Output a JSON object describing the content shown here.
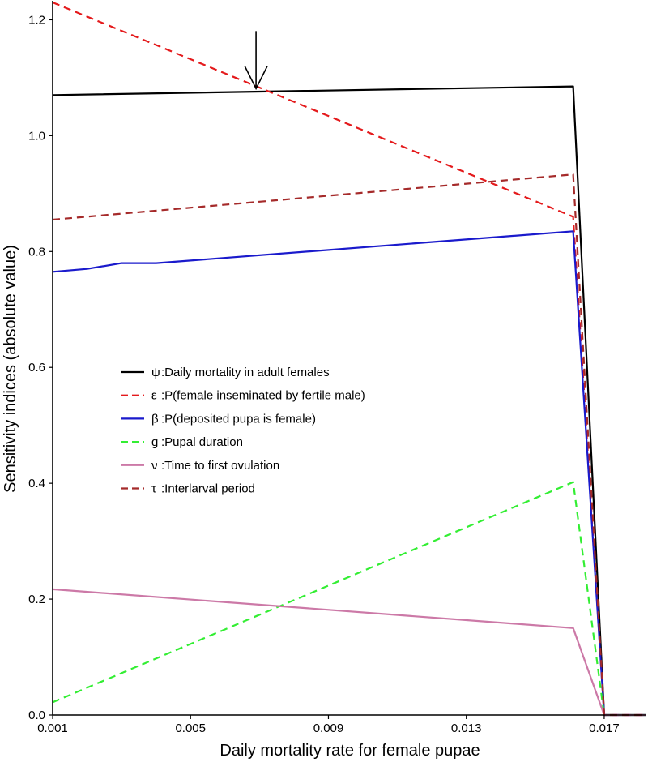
{
  "chart_data": {
    "type": "line",
    "xlabel": "Daily mortality rate for female pupae",
    "ylabel": "Sensitivity indices (absolute value)",
    "xlim": [
      0.001,
      0.0182
    ],
    "ylim": [
      0,
      1.23
    ],
    "xticks": [
      "0.001",
      "0.005",
      "0.009",
      "0.013",
      "0.017"
    ],
    "xtick_values": [
      0.001,
      0.005,
      0.009,
      0.013,
      0.017
    ],
    "yticks": [
      "0.0",
      "0.2",
      "0.4",
      "0.6",
      "0.8",
      "1.0",
      "1.2"
    ],
    "ytick_values": [
      0,
      0.2,
      0.4,
      0.6,
      0.8,
      1.0,
      1.2
    ],
    "grid": false,
    "legend_position": "center-left",
    "annotation": {
      "type": "arrow",
      "x": 0.0069,
      "y": 1.077,
      "points": "down"
    },
    "series": [
      {
        "symbol": "ψ",
        "name": ":Daily mortality in adult females",
        "color": "#000000",
        "dash": "solid",
        "x": [
          0.001,
          0.0161,
          0.017,
          0.0182
        ],
        "y": [
          1.07,
          1.085,
          0.0,
          0.0
        ]
      },
      {
        "symbol": "ε",
        "name": ":P(female inseminated by fertile male)",
        "color": "#e41a1c",
        "dash": "dashed",
        "x": [
          0.001,
          0.0161,
          0.017,
          0.0182
        ],
        "y": [
          1.23,
          0.86,
          0.0,
          0.0
        ]
      },
      {
        "symbol": "β",
        "name": ":P(deposited pupa is female)",
        "color": "#1a1acc",
        "dash": "solid",
        "x": [
          0.001,
          0.002,
          0.003,
          0.004,
          0.0161,
          0.017,
          0.0182
        ],
        "y": [
          0.765,
          0.77,
          0.78,
          0.78,
          0.835,
          0.0,
          0.0
        ]
      },
      {
        "symbol": "g",
        "name": ":Pupal duration",
        "color": "#33ee33",
        "dash": "dashed",
        "x": [
          0.001,
          0.0161,
          0.017,
          0.0182
        ],
        "y": [
          0.022,
          0.402,
          0.0,
          0.0
        ]
      },
      {
        "symbol": "ν",
        "name": ":Time to first ovulation",
        "color": "#cc79a7",
        "dash": "solid",
        "x": [
          0.001,
          0.0161,
          0.017,
          0.0182
        ],
        "y": [
          0.217,
          0.15,
          0.0,
          0.0
        ]
      },
      {
        "symbol": "τ",
        "name": ":Interlarval period",
        "color": "#a52a2a",
        "dash": "dashed",
        "x": [
          0.001,
          0.0161,
          0.017,
          0.0182
        ],
        "y": [
          0.855,
          0.933,
          0.0,
          0.0
        ]
      }
    ]
  }
}
